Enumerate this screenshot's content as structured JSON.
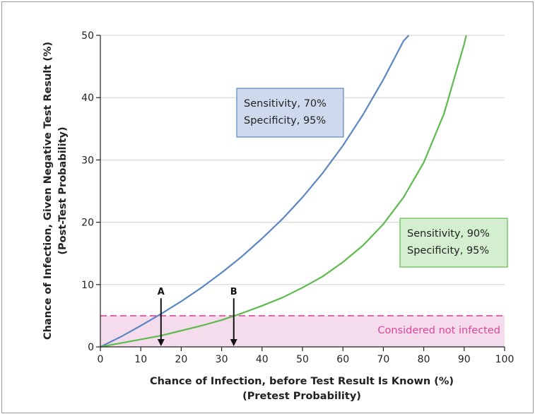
{
  "chart_data": {
    "type": "line",
    "xlabel": "Chance of Infection, before Test Result Is Known (%)",
    "xlabel_sub": "(Pretest Probability)",
    "ylabel": "Chance of Infection, Given Negative Test Result (%)",
    "ylabel_sub": "(Post-Test Probability)",
    "xlim": [
      0,
      100
    ],
    "ylim": [
      0,
      50
    ],
    "x_ticks": [
      0,
      10,
      20,
      30,
      40,
      50,
      60,
      70,
      80,
      90,
      100
    ],
    "y_ticks": [
      0,
      10,
      20,
      30,
      40,
      50
    ],
    "grid": "horizontal",
    "series": [
      {
        "name": "Sensitivity, 70% Specificity, 95%",
        "label_lines": [
          "Sensitivity, 70%",
          "Specificity, 95%"
        ],
        "color": "#5b86c5",
        "box_fill": "#cfd9ee",
        "x": [
          0,
          5,
          10,
          15,
          20,
          25,
          30,
          35,
          40,
          45,
          50,
          55,
          60,
          65,
          70,
          75,
          76.3
        ],
        "y": [
          0,
          1.6,
          3.4,
          5.3,
          7.3,
          9.5,
          11.9,
          14.5,
          17.4,
          20.5,
          24.0,
          27.9,
          32.3,
          37.3,
          42.9,
          49.1,
          50.0
        ]
      },
      {
        "name": "Sensitivity, 90% Specificity, 95%",
        "label_lines": [
          "Sensitivity, 90%",
          "Specificity, 95%"
        ],
        "color": "#5dbb4d",
        "box_fill": "#d4efcf",
        "x": [
          0,
          5,
          10,
          15,
          20,
          25,
          30,
          35,
          40,
          45,
          50,
          55,
          60,
          65,
          70,
          75,
          80,
          85,
          90,
          90.5
        ],
        "y": [
          0,
          0.6,
          1.2,
          1.8,
          2.6,
          3.4,
          4.3,
          5.4,
          6.6,
          7.9,
          9.5,
          11.3,
          13.6,
          16.3,
          19.7,
          24.0,
          29.6,
          37.4,
          48.6,
          50.0
        ]
      }
    ],
    "threshold": {
      "value": 5,
      "label": "Considered not infected",
      "color": "#d9479a",
      "fill": "#f5dcec"
    },
    "markers": [
      {
        "label": "A",
        "x": 15
      },
      {
        "label": "B",
        "x": 33
      }
    ]
  }
}
